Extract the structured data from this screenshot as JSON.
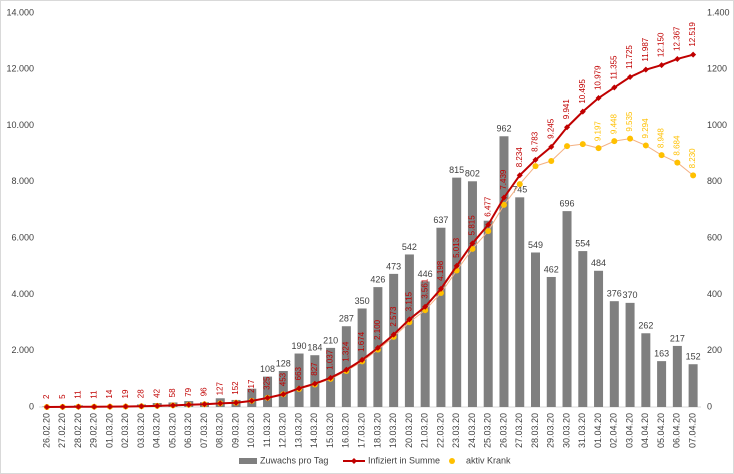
{
  "chart_data": {
    "type": "bar_line",
    "categories": [
      "26.02.20",
      "27.02.20",
      "28.02.20",
      "29.02.20",
      "01.03.20",
      "02.03.20",
      "03.03.20",
      "04.03.20",
      "05.03.20",
      "06.03.20",
      "07.03.20",
      "08.03.20",
      "09.03.20",
      "10.03.20",
      "11.03.20",
      "12.03.20",
      "13.03.20",
      "14.03.20",
      "15.03.20",
      "16.03.20",
      "17.03.20",
      "18.03.20",
      "19.03.20",
      "20.03.20",
      "21.03.20",
      "22.03.20",
      "23.03.20",
      "24.03.20",
      "25.03.20",
      "26.03.20",
      "27.03.20",
      "28.03.20",
      "29.03.20",
      "30.03.20",
      "31.03.20",
      "01.04.20",
      "02.04.20",
      "03.04.20",
      "04.04.20",
      "05.04.20",
      "06.04.20",
      "07.04.20"
    ],
    "series": [
      {
        "name": "Zuwachs pro Tag",
        "type": "bar",
        "axis": "y2",
        "color": "#7f7f7f",
        "values": [
          2,
          3,
          6,
          0,
          3,
          5,
          9,
          14,
          16,
          21,
          17,
          31,
          25,
          65,
          108,
          128,
          190,
          184,
          210,
          287,
          350,
          426,
          473,
          542,
          446,
          637,
          815,
          802,
          662,
          962,
          745,
          549,
          462,
          696,
          554,
          484,
          376,
          370,
          262,
          163,
          217,
          152
        ],
        "value_labels": [
          null,
          null,
          null,
          null,
          null,
          null,
          null,
          null,
          null,
          null,
          null,
          null,
          null,
          null,
          "108",
          "128",
          "190",
          "184",
          "210",
          "287",
          "350",
          "426",
          "473",
          "542",
          "446",
          "637",
          "815",
          "802",
          null,
          "962",
          "745",
          "549",
          "462",
          "696",
          "554",
          "484",
          "376",
          "370",
          "262",
          "163",
          "217",
          "152"
        ]
      },
      {
        "name": "Infiziert in Summe",
        "type": "line",
        "axis": "y",
        "color": "#c00000",
        "values": [
          2,
          5,
          11,
          11,
          14,
          19,
          28,
          42,
          58,
          79,
          96,
          127,
          152,
          217,
          325,
          453,
          663,
          827,
          1037,
          1324,
          1674,
          2100,
          2573,
          3115,
          3561,
          4198,
          5013,
          5815,
          6477,
          7439,
          8234,
          8783,
          9245,
          9941,
          10495,
          10979,
          11355,
          11725,
          11987,
          12150,
          12367,
          12519
        ],
        "value_labels": [
          "2",
          "5",
          "11",
          "11",
          "14",
          "19",
          "28",
          "42",
          "58",
          "79",
          "96",
          "127",
          "152",
          "217",
          "325",
          "453",
          "663",
          "827",
          "1.037",
          "1.324",
          "1.674",
          "2.100",
          "2.573",
          "3.115",
          "3.561",
          "4.198",
          "5.013",
          "5.815",
          "6.477",
          "7.439",
          "8.234",
          "8.783",
          "9.245",
          "9.941",
          "10.495",
          "10.979",
          "11.355",
          "11.725",
          "11.987",
          "12.150",
          "12.367",
          "12.519"
        ]
      },
      {
        "name": "aktiv Krank",
        "type": "dots",
        "axis": "y",
        "color": "#ffc000",
        "values": [
          2,
          5,
          11,
          11,
          14,
          19,
          28,
          42,
          58,
          79,
          96,
          127,
          152,
          217,
          325,
          453,
          640,
          800,
          1000,
          1280,
          1620,
          2040,
          2490,
          3010,
          3440,
          4050,
          4850,
          5620,
          6250,
          7180,
          7920,
          8560,
          8740,
          9270,
          9340,
          9197,
          9448,
          9535,
          9294,
          8948,
          8684,
          8230
        ],
        "value_labels": [
          null,
          null,
          null,
          null,
          null,
          null,
          null,
          null,
          null,
          null,
          null,
          null,
          null,
          null,
          null,
          null,
          null,
          null,
          null,
          null,
          null,
          null,
          null,
          null,
          null,
          null,
          null,
          null,
          null,
          null,
          null,
          null,
          null,
          null,
          null,
          "9.197",
          "9.448",
          "9.535",
          "9.294",
          "8.948",
          "8.684",
          "8.230"
        ]
      }
    ],
    "ylim": [
      0,
      14000
    ],
    "yticks": [
      0,
      {
        "value": 2000,
        "label": "2.000"
      },
      {
        "value": 4000,
        "label": "4.000"
      },
      {
        "value": 6000,
        "label": "6.000"
      },
      {
        "value": 8000,
        "label": "8.000"
      },
      {
        "value": 10000,
        "label": "10.000"
      },
      {
        "value": 12000,
        "label": "12.000"
      },
      {
        "value": 14000,
        "label": "14.000"
      }
    ],
    "y2lim": [
      0,
      1400
    ],
    "y2ticks": [
      0,
      200,
      400,
      600,
      800,
      1000,
      1200,
      {
        "value": 1400,
        "label": "1.400"
      }
    ]
  }
}
